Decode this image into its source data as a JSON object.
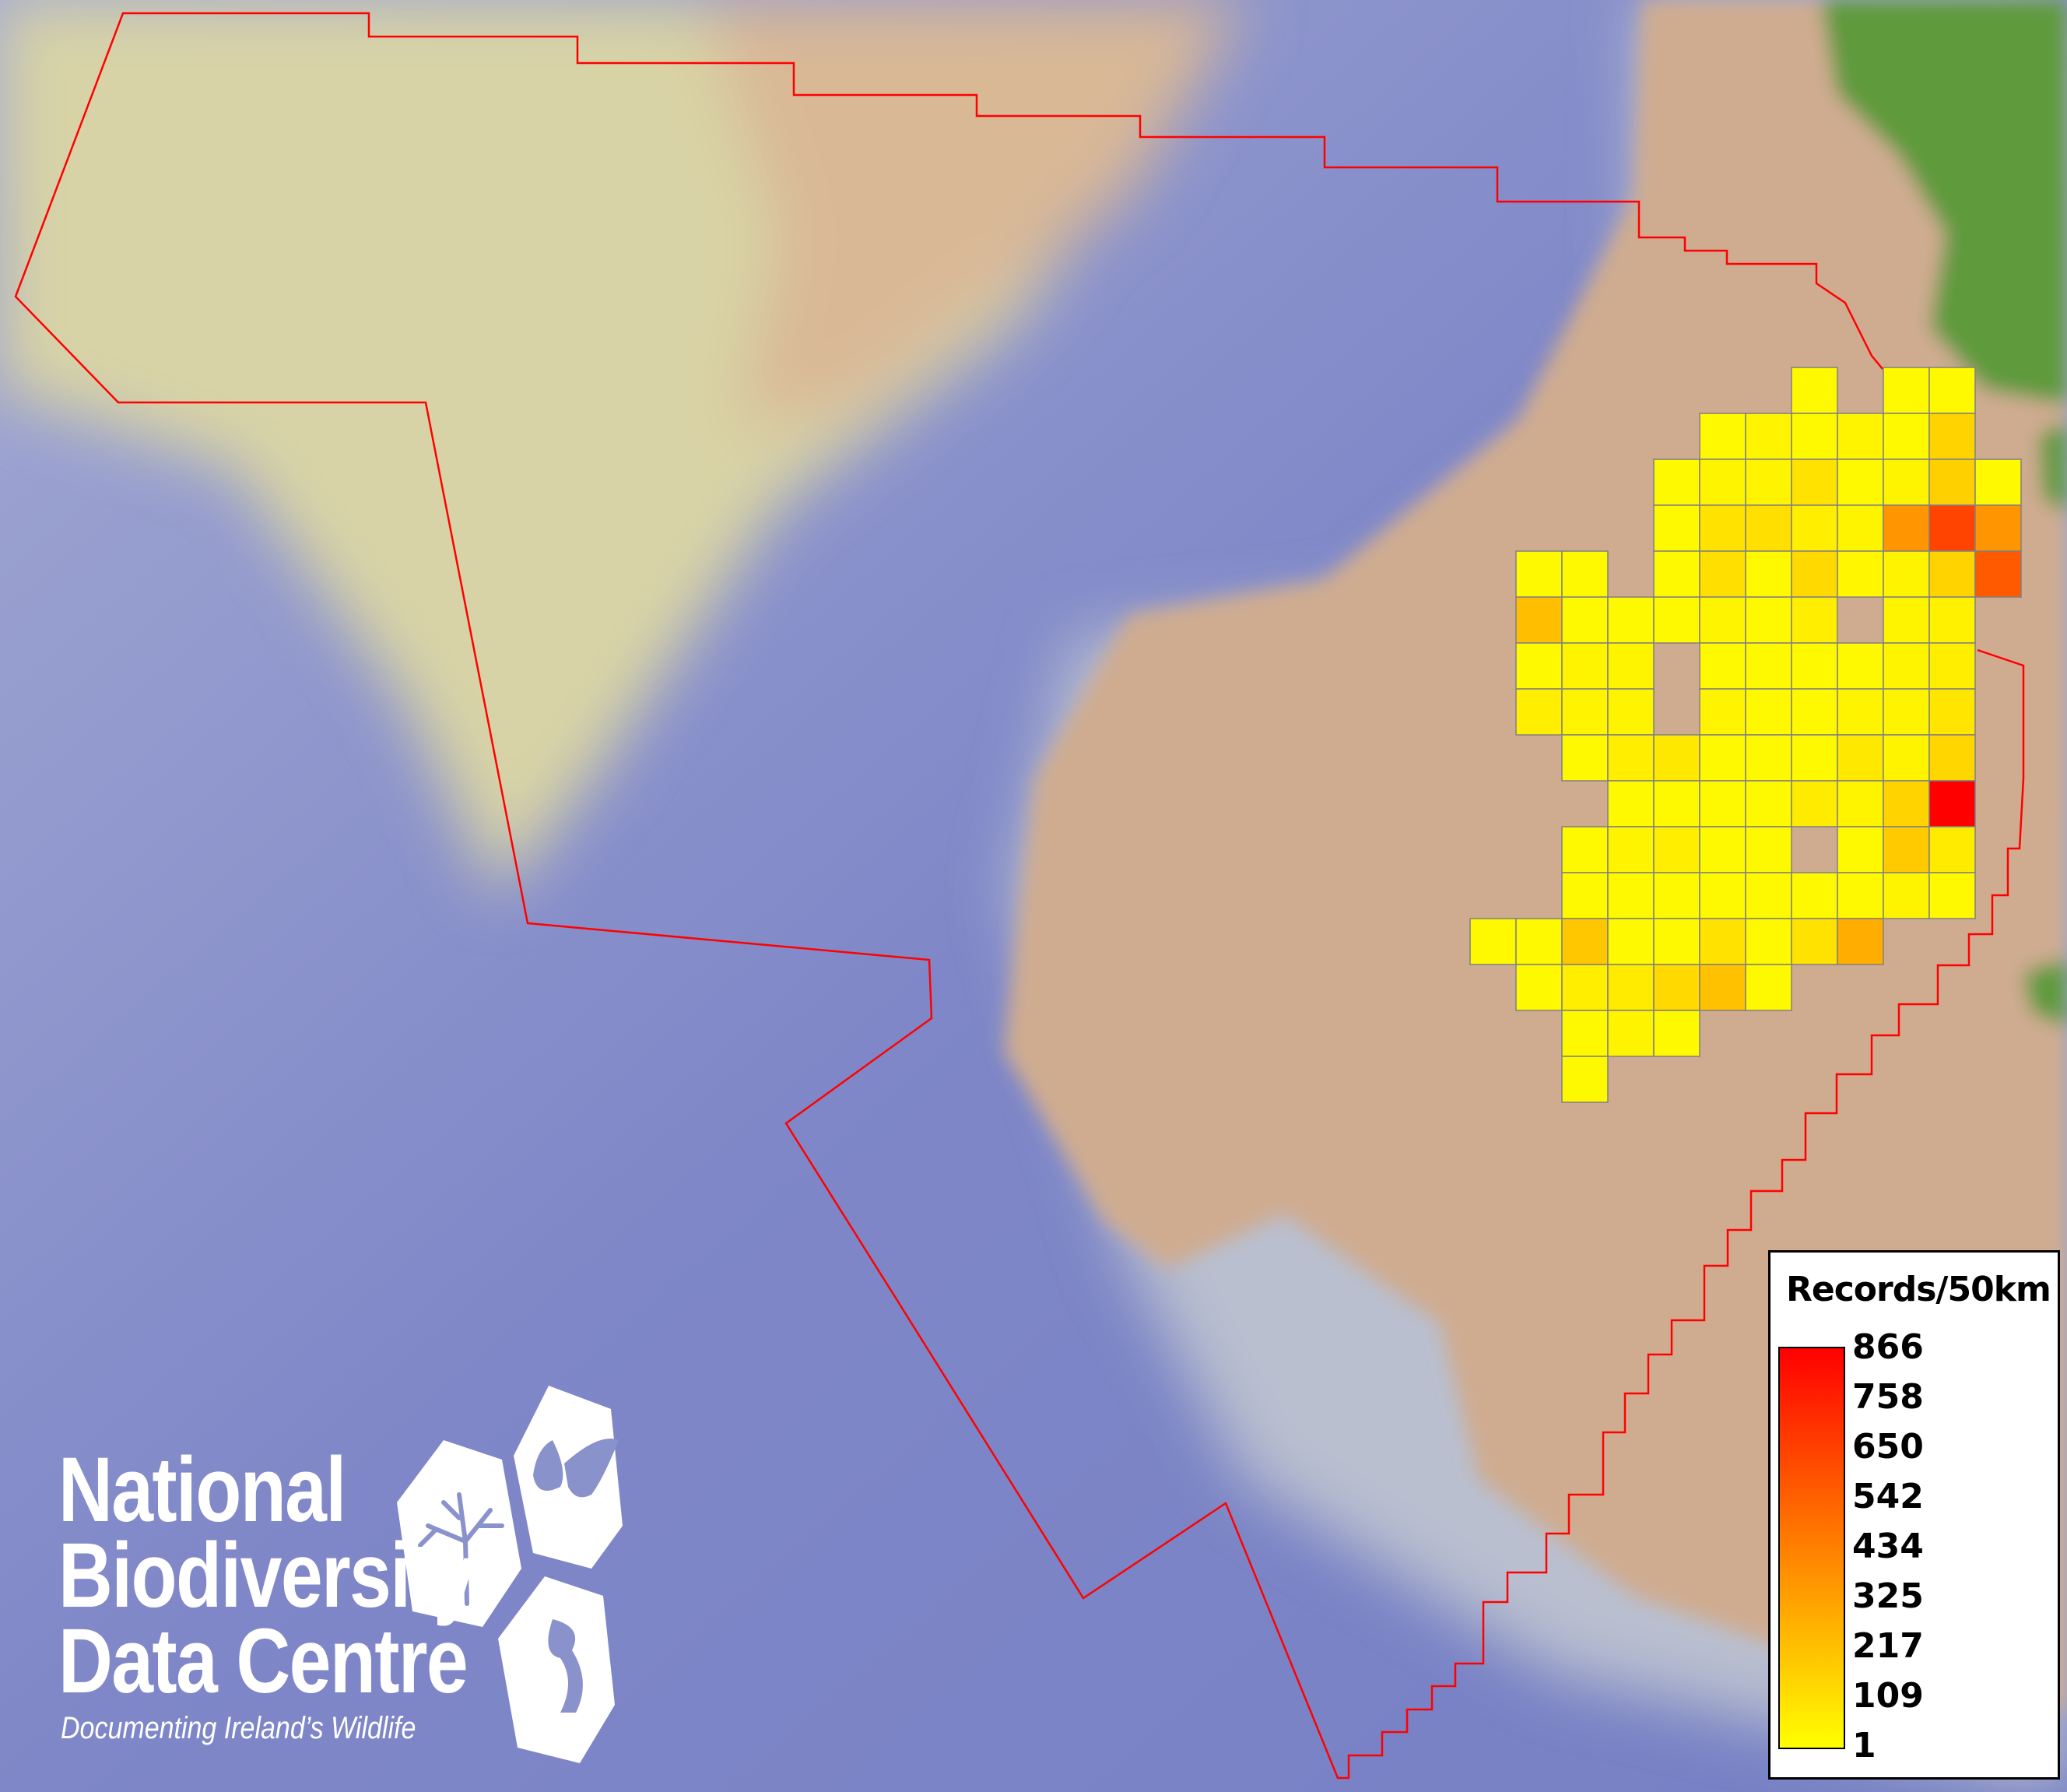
{
  "map": {
    "boundary_color": "#ff0000",
    "land_color": "#cfac90",
    "ocean_color": "#7b84c6",
    "upland_color": "#5f9a3e"
  },
  "legend": {
    "title": "Records/50km",
    "labels": [
      "866",
      "758",
      "650",
      "542",
      "434",
      "325",
      "217",
      "109",
      "1"
    ],
    "min": 1,
    "max": 866,
    "color_low": "#ffff00",
    "color_high": "#ff0000"
  },
  "grid": {
    "cell_size_km": 50,
    "border_color": "#808080",
    "values": [
      [
        null,
        null,
        null,
        null,
        null,
        null,
        null,
        20,
        null,
        20,
        20,
        null
      ],
      [
        null,
        null,
        null,
        null,
        null,
        20,
        40,
        20,
        40,
        20,
        150,
        null
      ],
      [
        null,
        null,
        null,
        null,
        20,
        40,
        40,
        100,
        20,
        40,
        160,
        20
      ],
      [
        null,
        null,
        null,
        null,
        20,
        100,
        110,
        60,
        40,
        360,
        640,
        360
      ],
      [
        null,
        20,
        20,
        null,
        20,
        110,
        20,
        130,
        30,
        40,
        150,
        560
      ],
      [
        null,
        220,
        20,
        20,
        20,
        40,
        20,
        60,
        null,
        40,
        50,
        null
      ],
      [
        null,
        20,
        40,
        40,
        null,
        20,
        20,
        20,
        20,
        40,
        60,
        null
      ],
      [
        null,
        60,
        40,
        40,
        null,
        40,
        20,
        20,
        40,
        40,
        90,
        null
      ],
      [
        null,
        null,
        20,
        60,
        80,
        20,
        20,
        20,
        80,
        40,
        140,
        null
      ],
      [
        null,
        null,
        null,
        20,
        20,
        20,
        20,
        70,
        40,
        150,
        866,
        null
      ],
      [
        null,
        null,
        20,
        40,
        60,
        20,
        20,
        null,
        20,
        180,
        70,
        null
      ],
      [
        null,
        null,
        20,
        20,
        20,
        20,
        20,
        20,
        20,
        40,
        20,
        null
      ],
      [
        20,
        20,
        190,
        20,
        20,
        100,
        20,
        100,
        280,
        null,
        null,
        null
      ],
      [
        null,
        20,
        60,
        70,
        130,
        210,
        20,
        null,
        null,
        null,
        null,
        null
      ],
      [
        null,
        null,
        20,
        40,
        20,
        null,
        null,
        null,
        null,
        null,
        null,
        null
      ],
      [
        null,
        null,
        20,
        null,
        null,
        null,
        null,
        null,
        null,
        null,
        null,
        null
      ]
    ]
  },
  "logo": {
    "line1": "National",
    "line2": "Biodiversity",
    "line3": "Data Centre",
    "tagline": "Documenting Ireland’s Wildlife",
    "icons": [
      "tree-icon",
      "butterfly-icon",
      "seahorse-icon"
    ]
  }
}
